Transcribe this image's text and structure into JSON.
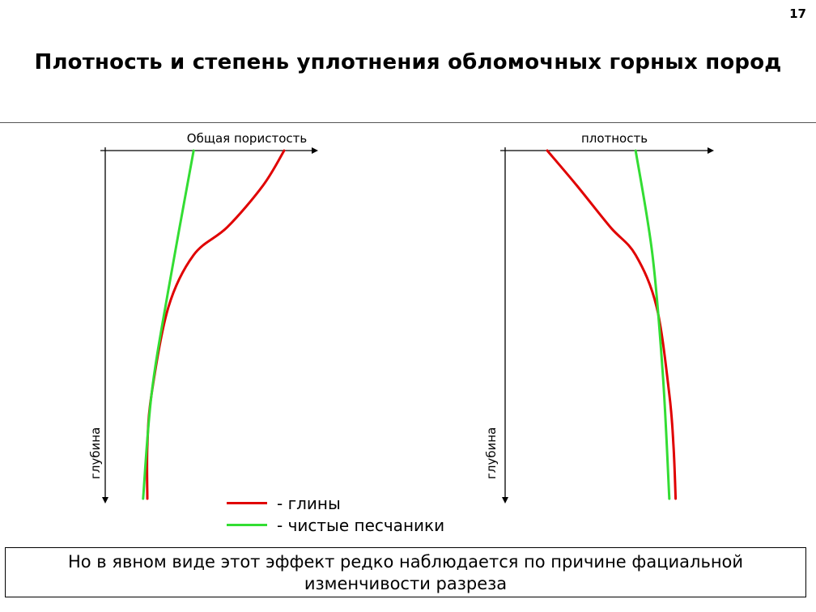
{
  "slide": {
    "number": "17",
    "title": "Плотность и степень уплотнения обломочных горных пород"
  },
  "legend": {
    "items": [
      {
        "label": "- глины",
        "color": "#e00000"
      },
      {
        "label": "- чистые песчаники",
        "color": "#33dd33"
      }
    ]
  },
  "note": {
    "line1": "Но в явном виде этот эффект редко наблюдается по причине фациальной",
    "line2": "изменчивости разреза"
  },
  "colors": {
    "clay": "#e00000",
    "sand": "#33dd33",
    "axis": "#000000"
  },
  "chart_data": [
    {
      "type": "line",
      "title": "",
      "xlabel": "Общая пористость",
      "ylabel": "глубина",
      "x_axis_direction": "right",
      "y_axis_direction": "down",
      "ticks": "none",
      "grid": false,
      "xlim": [
        0,
        1
      ],
      "ylim": [
        0,
        1
      ],
      "series": [
        {
          "name": "глины",
          "color": "#e00000",
          "x": [
            0.85,
            0.75,
            0.58,
            0.42,
            0.3,
            0.22,
            0.2,
            0.2
          ],
          "y": [
            0.0,
            0.1,
            0.22,
            0.3,
            0.45,
            0.7,
            0.85,
            1.0
          ]
        },
        {
          "name": "чистые песчаники",
          "color": "#33dd33",
          "x": [
            0.42,
            0.3,
            0.22,
            0.18
          ],
          "y": [
            0.0,
            0.4,
            0.7,
            1.0
          ]
        }
      ]
    },
    {
      "type": "line",
      "title": "",
      "xlabel": "плотность",
      "ylabel": "глубина",
      "x_axis_direction": "right",
      "y_axis_direction": "down",
      "ticks": "none",
      "grid": false,
      "xlim": [
        0,
        1
      ],
      "ylim": [
        0,
        1
      ],
      "series": [
        {
          "name": "глины",
          "color": "#e00000",
          "x": [
            0.2,
            0.34,
            0.5,
            0.62,
            0.72,
            0.78,
            0.8,
            0.81
          ],
          "y": [
            0.0,
            0.1,
            0.22,
            0.3,
            0.45,
            0.7,
            0.85,
            1.0
          ]
        },
        {
          "name": "чистые песчаники",
          "color": "#33dd33",
          "x": [
            0.62,
            0.7,
            0.75,
            0.78
          ],
          "y": [
            0.0,
            0.3,
            0.65,
            1.0
          ]
        }
      ]
    }
  ]
}
